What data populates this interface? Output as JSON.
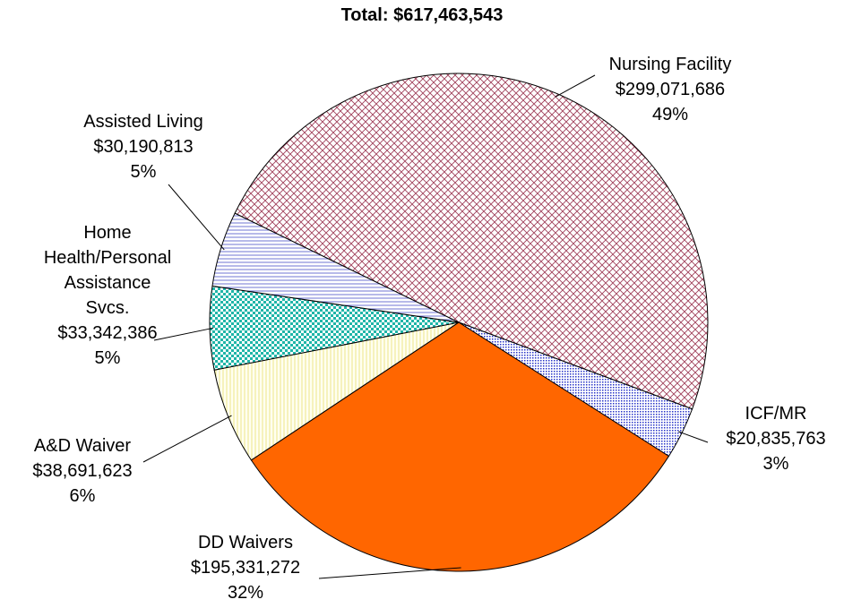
{
  "chart_data": {
    "type": "pie",
    "title": "Total: $617,463,543",
    "categories": [
      "Nursing Facility",
      "ICF/MR",
      "DD Waivers",
      "A&D Waiver",
      "Home Health/Personal Assistance Svcs.",
      "Assisted Living"
    ],
    "values": [
      299071686,
      20835763,
      195331272,
      38691623,
      33342386,
      30190813
    ],
    "value_labels": [
      "$299,071,686",
      "$20,835,763",
      "$195,331,272",
      "$38,691,623",
      "$33,342,386",
      "$30,190,813"
    ],
    "percents": [
      49,
      3,
      32,
      6,
      5,
      5
    ],
    "percent_labels": [
      "49%",
      "3%",
      "32%",
      "6%",
      "5%",
      "5%"
    ],
    "colors": [
      "#a0405a",
      "#2a36c8",
      "#ff6600",
      "#e8e070",
      "#1fb5a8",
      "#4a52c8"
    ],
    "patterns": [
      "crosshatch",
      "dots",
      "solid",
      "vlines",
      "checker",
      "hlines"
    ]
  }
}
